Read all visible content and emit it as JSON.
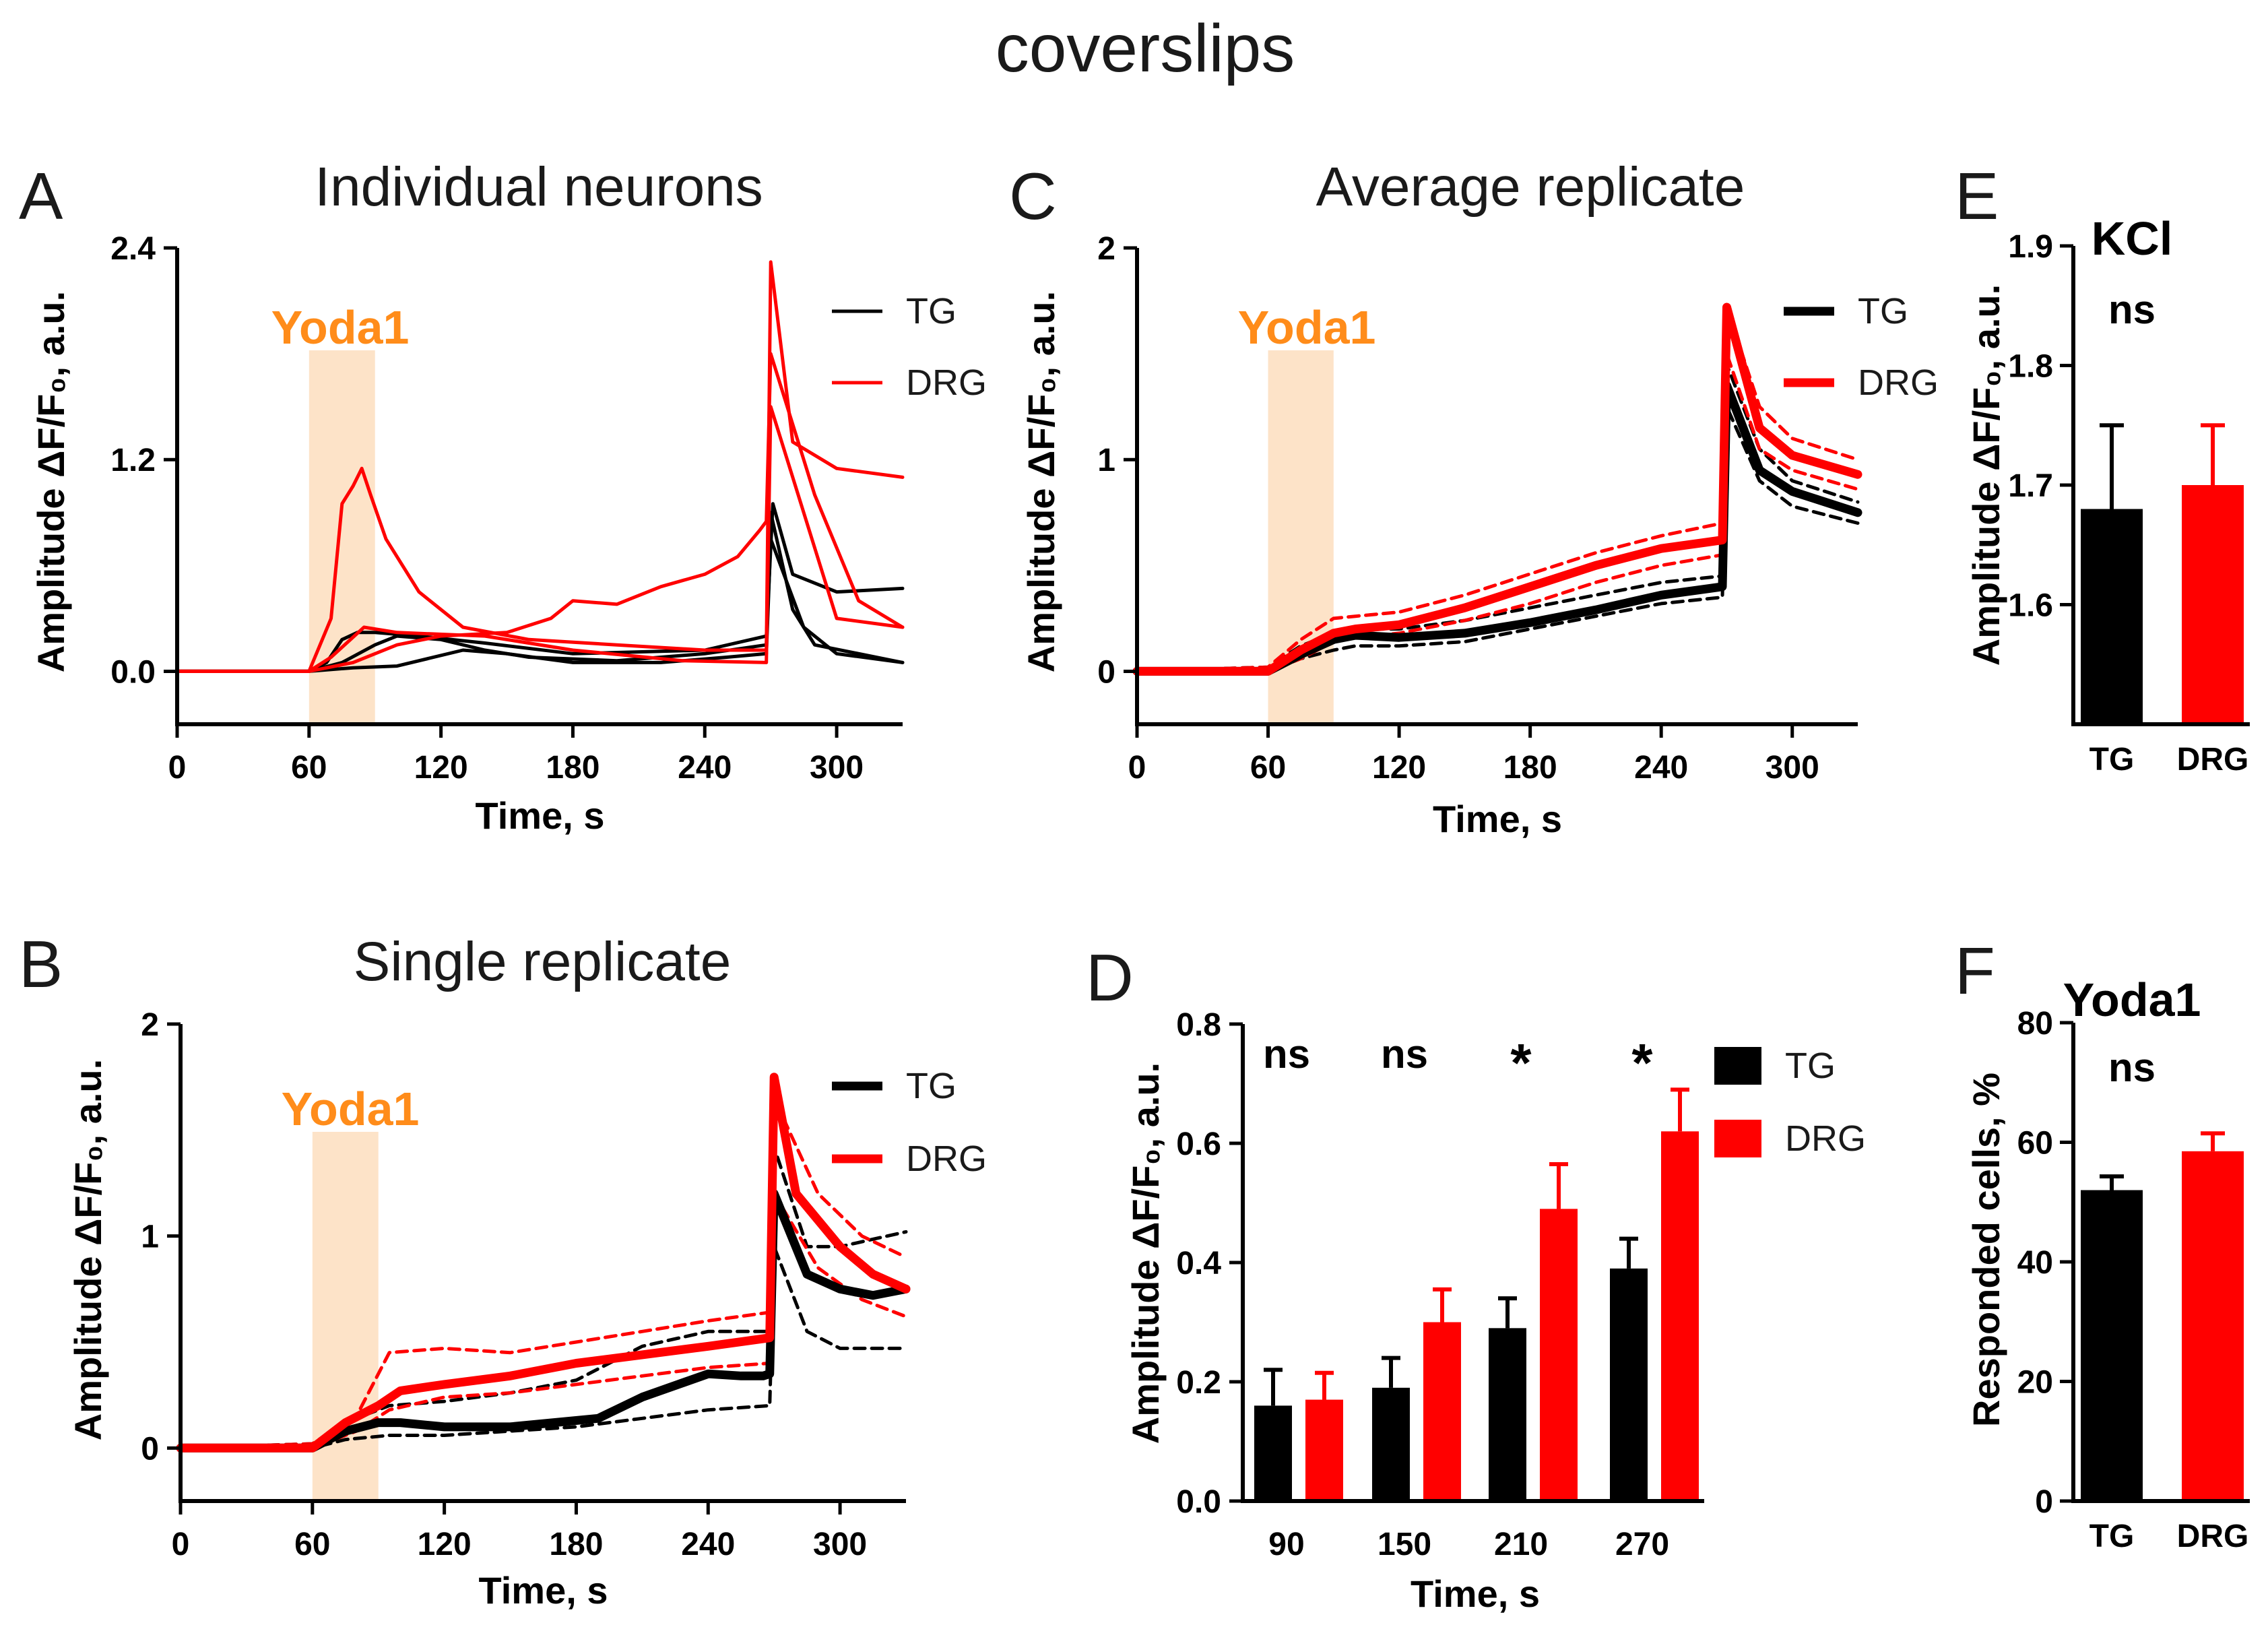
{
  "figure": {
    "title": "coverslips",
    "colors": {
      "tg": "#000000",
      "drg": "#ff0000",
      "yoda_band": "#fde3c8",
      "yoda_text": "#ff8c1a"
    },
    "axis_ylabel_ampl": "Amplitude ΔF/F₀, a.u.",
    "axis_xlabel_time": "Time, s",
    "stim_label": "Yoda1"
  },
  "panels": {
    "A": {
      "letter": "A",
      "title": "Individual neurons"
    },
    "B": {
      "letter": "B",
      "title": "Single replicate"
    },
    "C": {
      "letter": "C",
      "title": "Average replicate"
    },
    "D": {
      "letter": "D"
    },
    "E": {
      "letter": "E",
      "title": "KCl",
      "stat": "ns"
    },
    "F": {
      "letter": "F",
      "title": "Yoda1",
      "stat": "ns"
    }
  },
  "chart_data": [
    {
      "id": "A",
      "type": "line",
      "title": "Individual neurons",
      "xlabel": "Time, s",
      "ylabel": "Amplitude ΔF/F₀, a.u.",
      "xlim": [
        0,
        330
      ],
      "ylim": [
        -0.3,
        2.4
      ],
      "xticks": [
        0,
        60,
        120,
        180,
        240,
        300
      ],
      "yticks": [
        0.0,
        1.2,
        2.4
      ],
      "ytick_labels": [
        "0.0",
        "1.2",
        "2.4"
      ],
      "stim": {
        "label": "Yoda1",
        "start": 60,
        "end": 90
      },
      "legend": [
        {
          "name": "TG",
          "color": "#000000"
        },
        {
          "name": "DRG",
          "color": "#ff0000"
        }
      ],
      "series": [
        {
          "name": "TG",
          "color": "#000000",
          "width": 5,
          "dash": false,
          "x": [
            0,
            60,
            68,
            75,
            82,
            90,
            110,
            140,
            180,
            240,
            268,
            271,
            280,
            300,
            330
          ],
          "y": [
            0,
            0,
            0.05,
            0.18,
            0.22,
            0.22,
            0.2,
            0.16,
            0.1,
            0.12,
            0.2,
            0.95,
            0.55,
            0.45,
            0.47
          ]
        },
        {
          "name": "TG",
          "color": "#000000",
          "width": 5,
          "dash": false,
          "x": [
            0,
            60,
            75,
            90,
            100,
            120,
            140,
            160,
            200,
            240,
            268,
            270,
            280,
            290,
            330
          ],
          "y": [
            0,
            0,
            0.05,
            0.15,
            0.2,
            0.18,
            0.12,
            0.08,
            0.06,
            0.1,
            0.15,
            0.9,
            0.35,
            0.15,
            0.05
          ]
        },
        {
          "name": "TG",
          "color": "#000000",
          "width": 5,
          "dash": false,
          "x": [
            0,
            60,
            80,
            100,
            130,
            150,
            180,
            220,
            250,
            268,
            270,
            285,
            300,
            330
          ],
          "y": [
            0,
            0,
            0.02,
            0.03,
            0.12,
            0.1,
            0.05,
            0.05,
            0.08,
            0.1,
            0.75,
            0.25,
            0.1,
            0.05
          ]
        },
        {
          "name": "DRG",
          "color": "#ff0000",
          "width": 5,
          "dash": false,
          "x": [
            0,
            60,
            70,
            75,
            80,
            84,
            88,
            95,
            110,
            130,
            160,
            200,
            240,
            268,
            270,
            280,
            300,
            330
          ],
          "y": [
            0,
            0,
            0.3,
            0.95,
            1.05,
            1.15,
            1.0,
            0.75,
            0.45,
            0.25,
            0.18,
            0.15,
            0.12,
            0.12,
            2.32,
            1.3,
            1.15,
            1.1
          ]
        },
        {
          "name": "DRG",
          "color": "#ff0000",
          "width": 5,
          "dash": false,
          "x": [
            0,
            60,
            80,
            100,
            120,
            150,
            170,
            180,
            200,
            220,
            240,
            255,
            265,
            268,
            270,
            290,
            310,
            330
          ],
          "y": [
            0,
            0,
            0.05,
            0.15,
            0.2,
            0.22,
            0.3,
            0.4,
            0.38,
            0.48,
            0.55,
            0.65,
            0.8,
            0.85,
            1.8,
            1.0,
            0.4,
            0.25
          ]
        },
        {
          "name": "DRG",
          "color": "#ff0000",
          "width": 5,
          "dash": false,
          "x": [
            0,
            60,
            70,
            85,
            100,
            140,
            180,
            230,
            268,
            270,
            300,
            330
          ],
          "y": [
            0,
            0,
            0.08,
            0.25,
            0.22,
            0.2,
            0.12,
            0.06,
            0.05,
            1.5,
            0.3,
            0.25
          ]
        }
      ]
    },
    {
      "id": "B",
      "type": "line",
      "title": "Single replicate",
      "xlabel": "Time, s",
      "ylabel": "Amplitude ΔF/F₀, a.u.",
      "xlim": [
        0,
        330
      ],
      "ylim": [
        -0.25,
        2
      ],
      "xticks": [
        0,
        60,
        120,
        180,
        240,
        300
      ],
      "yticks": [
        0,
        1,
        2
      ],
      "ytick_labels": [
        "0",
        "1",
        "2"
      ],
      "stim": {
        "label": "Yoda1",
        "start": 60,
        "end": 90
      },
      "legend": [
        {
          "name": "TG",
          "color": "#000000"
        },
        {
          "name": "DRG",
          "color": "#ff0000"
        }
      ],
      "series": [
        {
          "name": "TG upper",
          "color": "#000000",
          "width": 5,
          "dash": true,
          "x": [
            0,
            60,
            75,
            95,
            120,
            150,
            180,
            210,
            240,
            268,
            270,
            285,
            300,
            330
          ],
          "y": [
            0,
            0.02,
            0.12,
            0.2,
            0.22,
            0.26,
            0.32,
            0.48,
            0.55,
            0.55,
            1.42,
            0.95,
            0.95,
            1.02
          ]
        },
        {
          "name": "TG lower",
          "color": "#000000",
          "width": 5,
          "dash": true,
          "x": [
            0,
            60,
            75,
            95,
            120,
            150,
            180,
            210,
            240,
            268,
            270,
            285,
            300,
            330
          ],
          "y": [
            0,
            0,
            0.04,
            0.06,
            0.06,
            0.08,
            0.1,
            0.14,
            0.18,
            0.2,
            0.95,
            0.55,
            0.47,
            0.47
          ]
        },
        {
          "name": "DRG upper",
          "color": "#ff0000",
          "width": 5,
          "dash": true,
          "x": [
            0,
            60,
            80,
            95,
            120,
            150,
            180,
            210,
            240,
            268,
            270,
            290,
            310,
            330
          ],
          "y": [
            0,
            0.02,
            0.15,
            0.45,
            0.47,
            0.45,
            0.5,
            0.55,
            0.6,
            0.64,
            1.65,
            1.2,
            1.0,
            0.9
          ]
        },
        {
          "name": "DRG lower",
          "color": "#ff0000",
          "width": 5,
          "dash": true,
          "x": [
            0,
            60,
            80,
            95,
            120,
            150,
            180,
            210,
            240,
            268,
            270,
            290,
            310,
            330
          ],
          "y": [
            0,
            0,
            0.08,
            0.18,
            0.24,
            0.26,
            0.3,
            0.34,
            0.38,
            0.4,
            1.2,
            0.85,
            0.7,
            0.62
          ]
        },
        {
          "name": "TG",
          "color": "#000000",
          "width": 13,
          "dash": false,
          "x": [
            0,
            60,
            75,
            90,
            100,
            120,
            150,
            170,
            190,
            210,
            240,
            255,
            265,
            268,
            270,
            285,
            300,
            315,
            330
          ],
          "y": [
            0,
            0,
            0.08,
            0.12,
            0.12,
            0.1,
            0.1,
            0.12,
            0.14,
            0.24,
            0.35,
            0.34,
            0.34,
            0.35,
            1.2,
            0.82,
            0.75,
            0.72,
            0.75
          ]
        },
        {
          "name": "DRG",
          "color": "#ff0000",
          "width": 13,
          "dash": false,
          "x": [
            0,
            60,
            75,
            90,
            100,
            120,
            150,
            180,
            210,
            240,
            268,
            270,
            280,
            300,
            315,
            330
          ],
          "y": [
            0,
            0,
            0.12,
            0.2,
            0.27,
            0.3,
            0.34,
            0.4,
            0.44,
            0.48,
            0.52,
            1.75,
            1.2,
            0.95,
            0.82,
            0.75
          ]
        }
      ]
    },
    {
      "id": "C",
      "type": "line",
      "title": "Average replicate",
      "xlabel": "Time, s",
      "ylabel": "Amplitude ΔF/F₀, a.u.",
      "xlim": [
        0,
        330
      ],
      "ylim": [
        -0.25,
        2
      ],
      "xticks": [
        0,
        60,
        120,
        180,
        240,
        300
      ],
      "yticks": [
        0,
        1,
        2
      ],
      "ytick_labels": [
        "0",
        "1",
        "2"
      ],
      "stim": {
        "label": "Yoda1",
        "start": 60,
        "end": 90
      },
      "legend": [
        {
          "name": "TG",
          "color": "#000000"
        },
        {
          "name": "DRG",
          "color": "#ff0000"
        }
      ],
      "series": [
        {
          "name": "TG upper",
          "color": "#000000",
          "width": 5,
          "dash": true,
          "x": [
            0,
            60,
            75,
            90,
            100,
            120,
            150,
            180,
            210,
            240,
            268,
            270,
            285,
            300,
            330
          ],
          "y": [
            0,
            0.02,
            0.12,
            0.18,
            0.2,
            0.2,
            0.24,
            0.3,
            0.36,
            0.42,
            0.45,
            1.45,
            1.05,
            0.9,
            0.8
          ]
        },
        {
          "name": "TG lower",
          "color": "#000000",
          "width": 5,
          "dash": true,
          "x": [
            0,
            60,
            75,
            90,
            100,
            120,
            150,
            180,
            210,
            240,
            268,
            270,
            285,
            300,
            330
          ],
          "y": [
            0,
            0,
            0.06,
            0.1,
            0.12,
            0.12,
            0.14,
            0.2,
            0.26,
            0.32,
            0.35,
            1.25,
            0.9,
            0.78,
            0.7
          ]
        },
        {
          "name": "DRG upper",
          "color": "#ff0000",
          "width": 5,
          "dash": true,
          "x": [
            0,
            60,
            75,
            90,
            100,
            120,
            150,
            180,
            210,
            240,
            268,
            270,
            285,
            300,
            330
          ],
          "y": [
            0,
            0.02,
            0.15,
            0.25,
            0.26,
            0.28,
            0.36,
            0.46,
            0.56,
            0.64,
            0.7,
            1.72,
            1.25,
            1.1,
            1.0
          ]
        },
        {
          "name": "DRG lower",
          "color": "#ff0000",
          "width": 5,
          "dash": true,
          "x": [
            0,
            60,
            75,
            90,
            100,
            120,
            150,
            180,
            210,
            240,
            268,
            270,
            285,
            300,
            330
          ],
          "y": [
            0,
            0,
            0.06,
            0.14,
            0.16,
            0.18,
            0.24,
            0.32,
            0.42,
            0.5,
            0.55,
            1.5,
            1.05,
            0.95,
            0.86
          ]
        },
        {
          "name": "TG",
          "color": "#000000",
          "width": 13,
          "dash": false,
          "x": [
            0,
            60,
            75,
            90,
            100,
            120,
            150,
            180,
            210,
            240,
            268,
            270,
            285,
            300,
            330
          ],
          "y": [
            0,
            0,
            0.08,
            0.15,
            0.17,
            0.16,
            0.18,
            0.23,
            0.29,
            0.36,
            0.4,
            1.35,
            0.95,
            0.85,
            0.75
          ]
        },
        {
          "name": "DRG",
          "color": "#ff0000",
          "width": 13,
          "dash": false,
          "x": [
            0,
            60,
            75,
            90,
            100,
            120,
            150,
            180,
            210,
            240,
            268,
            270,
            285,
            300,
            330
          ],
          "y": [
            0,
            0,
            0.1,
            0.18,
            0.2,
            0.22,
            0.3,
            0.4,
            0.5,
            0.58,
            0.62,
            1.72,
            1.15,
            1.02,
            0.93
          ]
        }
      ]
    },
    {
      "id": "D",
      "type": "bar",
      "xlabel": "Time, s",
      "ylabel": "Amplitude ΔF/F₀, a.u.",
      "ylim": [
        0,
        0.8
      ],
      "yticks": [
        0.0,
        0.2,
        0.4,
        0.6,
        0.8
      ],
      "ytick_labels": [
        "0.0",
        "0.2",
        "0.4",
        "0.6",
        "0.8"
      ],
      "categories": [
        "90",
        "150",
        "210",
        "270"
      ],
      "series": [
        {
          "name": "TG",
          "color": "#000000",
          "values": [
            0.16,
            0.19,
            0.29,
            0.39
          ],
          "errors": [
            0.06,
            0.05,
            0.05,
            0.05
          ]
        },
        {
          "name": "DRG",
          "color": "#ff0000",
          "values": [
            0.17,
            0.3,
            0.49,
            0.62
          ],
          "errors": [
            0.045,
            0.055,
            0.075,
            0.07
          ]
        }
      ],
      "annotations": [
        "ns",
        "ns",
        "*",
        "*"
      ],
      "legend": [
        {
          "name": "TG",
          "color": "#000000"
        },
        {
          "name": "DRG",
          "color": "#ff0000"
        }
      ]
    },
    {
      "id": "E",
      "type": "bar",
      "title": "KCl",
      "stat": "ns",
      "ylabel": "Amplitude ΔF/F₀, a.u.",
      "ylim": [
        1.5,
        1.9
      ],
      "yticks": [
        1.6,
        1.7,
        1.8,
        1.9
      ],
      "ytick_labels": [
        "1.6",
        "1.7",
        "1.8",
        "1.9"
      ],
      "categories": [
        "TG",
        "DRG"
      ],
      "values": [
        1.68,
        1.7
      ],
      "errors": [
        0.07,
        0.05
      ],
      "colors": [
        "#000000",
        "#ff0000"
      ]
    },
    {
      "id": "F",
      "type": "bar",
      "title": "Yoda1",
      "stat": "ns",
      "ylabel": "Responded cells, %",
      "ylim": [
        0,
        80
      ],
      "yticks": [
        0,
        20,
        40,
        60,
        80
      ],
      "ytick_labels": [
        "0",
        "20",
        "40",
        "60",
        "80"
      ],
      "categories": [
        "TG",
        "DRG"
      ],
      "values": [
        52,
        58.5
      ],
      "errors": [
        2.3,
        3.0
      ],
      "colors": [
        "#000000",
        "#ff0000"
      ]
    }
  ]
}
